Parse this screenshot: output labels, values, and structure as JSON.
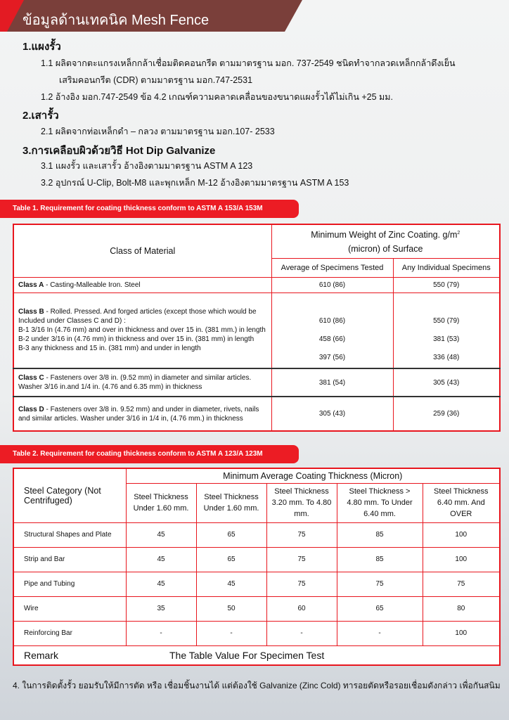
{
  "header": {
    "title": "ข้อมูลด้านเทคนิค Mesh Fence",
    "colors": {
      "banner": "#7a3f3a",
      "accent": "#ec1c24"
    }
  },
  "sections": [
    {
      "title": "1.แผงรั้ว",
      "items": [
        "1.1 ผลิตจากตะแกรงเหล็กกล้าเชื่อมติดคอนกรีต ตามมาตรฐาน มอก. 737-2549 ชนิดทำจากลวดเหล็กกล้าดึงเย็น",
        "เสริมคอนกรีต (CDR) ตามมาตรฐาน มอก.747-2531",
        "1.2 อ้างอิง มอก.747-2549 ข้อ 4.2 เกณฑ์ความคลาดเคลื่อนของขนาดแผงรั้วได้ไม่เกิน +25 มม."
      ]
    },
    {
      "title": "2.เสารั้ว",
      "items": [
        "2.1 ผลิตจากท่อเหล็กดำ – กลวง ตามมาตรฐาน มอก.107- 2533"
      ]
    },
    {
      "title": "3.การเคลือบผิวด้วยวิธี Hot Dip Galvanize",
      "items": [
        "3.1 แผงรั้ว และเสารั้ว อ้างอิงตามมาตรฐาน ASTM A 123",
        "3.2 อุปกรณ์ U-Clip, Bolt-M8 และพุกเหล็ก M-12 อ้างอิงตามมาตรฐาน  ASTM A 153"
      ]
    }
  ],
  "table1": {
    "caption": "Table 1. Requirement for coating thickness conform to ASTM A 153/A 153M",
    "col_class": "Class of Material",
    "col_group": "Minimum Weight of Zinc Coating. g/m",
    "col_group_sup": "2",
    "col_group2": "(micron) of Surface",
    "col_avg": "Average of Specimens Tested",
    "col_any": "Any Individual Specimens",
    "a": {
      "label": "Class A",
      "text": " - Casting-Malleable Iron. Steel",
      "avg": "610 (86)",
      "any": "550 (79)"
    },
    "b": {
      "label": "Class B",
      "text": " - Rolled. Pressed. And forged articles (except those which would be Included under Classes C and D) :",
      "b1": "B-1 3/16 In (4.76 mm) and over in thickness and over 15 in. (381 mm.) in length",
      "b1_avg": "610 (86)",
      "b1_any": "550 (79)",
      "b2": "B-2 under 3/16 in (4.76 mm) in thickness and over 15 in. (381 mm) in length",
      "b2_avg": "458 (66)",
      "b2_any": "381 (53)",
      "b3": "B-3 any thickness and 15 in. (381 mm) and under in length",
      "b3_avg": "397 (56)",
      "b3_any": "336 (48)"
    },
    "c": {
      "label": "Class C",
      "text": " - Fasteners over 3/8 in. (9.52 mm) in diameter and similar articles. Washer 3/16 in.and 1/4 in. (4.76 and 6.35 mm) in thickness",
      "avg": "381 (54)",
      "any": "305 (43)"
    },
    "d": {
      "label": "Class D",
      "text": " - Fasteners over 3/8 in. 9.52 mm) and under in diameter, rivets, nails and similar articles. Washer under 3/16 in 1/4 in, (4.76 mm.) in thickness",
      "avg": "305 (43)",
      "any": "259 (36)"
    }
  },
  "table2": {
    "caption": "Table 2. Requirement for coating thickness conform to ASTM A 123/A 123M",
    "col_category": "Steel Category (Not Centrifuged)",
    "col_group": "Minimum Average Coating Thickness (Micron)",
    "columns": [
      "Steel Thickness Under 1.60  mm.",
      "Steel Thickness Under 1.60  mm.",
      "Steel Thickness 3.20 mm. To 4.80 mm.",
      "Steel Thickness > 4.80 mm. To Under 6.40 mm.",
      "Steel Thickness 6.40 mm. And OVER"
    ],
    "rows": [
      {
        "name": "Structural Shapes and Plate",
        "values": [
          "45",
          "65",
          "75",
          "85",
          "100"
        ]
      },
      {
        "name": "Strip and Bar",
        "values": [
          "45",
          "65",
          "75",
          "85",
          "100"
        ]
      },
      {
        "name": "Pipe and Tubing",
        "values": [
          "45",
          "45",
          "75",
          "75",
          "75"
        ]
      },
      {
        "name": "Wire",
        "values": [
          "35",
          "50",
          "60",
          "65",
          "80"
        ]
      },
      {
        "name": "Reinforcing Bar",
        "values": [
          "-",
          "-",
          "-",
          "-",
          "100"
        ]
      }
    ],
    "remark_label": "Remark",
    "remark_text": "The Table Value For Specimen Test"
  },
  "footer": "4. ในการติดตั้งรั้ว ยอมรับให้มีการตัด หรือ เชื่อมชิ้นงานได้ แต่ต้องใช้ Galvanize (Zinc Cold) ทารอยตัดหรือรอยเชื่อมดังกล่าว เพื่อกันสนิม"
}
